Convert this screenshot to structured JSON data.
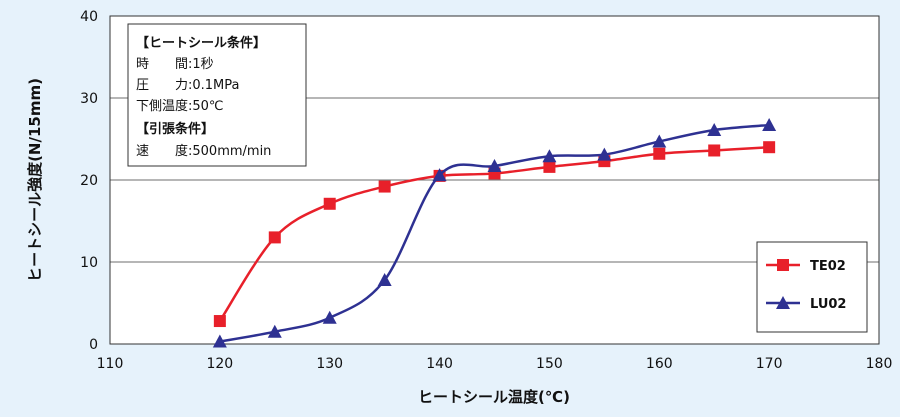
{
  "chart_data": {
    "type": "line",
    "xlabel": "ヒートシール温度(℃)",
    "ylabel": "ヒートシール強度(N/15mm)",
    "xlim": [
      110,
      180
    ],
    "ylim": [
      0,
      40
    ],
    "x_ticks": [
      110,
      120,
      130,
      140,
      150,
      160,
      170,
      180
    ],
    "y_ticks": [
      0,
      10,
      20,
      30,
      40
    ],
    "grid": "horizontal",
    "legend_position": "right",
    "series": [
      {
        "name": "TE02",
        "marker": "square",
        "color": "#e8202a",
        "x": [
          120,
          125,
          130,
          135,
          140,
          145,
          150,
          155,
          160,
          165,
          170
        ],
        "y": [
          2.8,
          13.0,
          17.1,
          19.2,
          20.5,
          20.8,
          21.6,
          22.3,
          23.2,
          23.6,
          24.0
        ]
      },
      {
        "name": "LU02",
        "marker": "triangle",
        "color": "#2e3192",
        "x": [
          120,
          125,
          130,
          135,
          140,
          145,
          150,
          155,
          160,
          165,
          170
        ],
        "y": [
          0.3,
          1.5,
          3.2,
          7.8,
          20.6,
          21.7,
          22.9,
          23.1,
          24.7,
          26.1,
          26.7
        ]
      }
    ],
    "annotation": {
      "lines": [
        "【ヒートシール条件】",
        "時　　間:1秒",
        "圧　　力:0.1MPa",
        "下側温度:50℃",
        "【引張条件】",
        "速　　度:500mm/min"
      ]
    }
  }
}
